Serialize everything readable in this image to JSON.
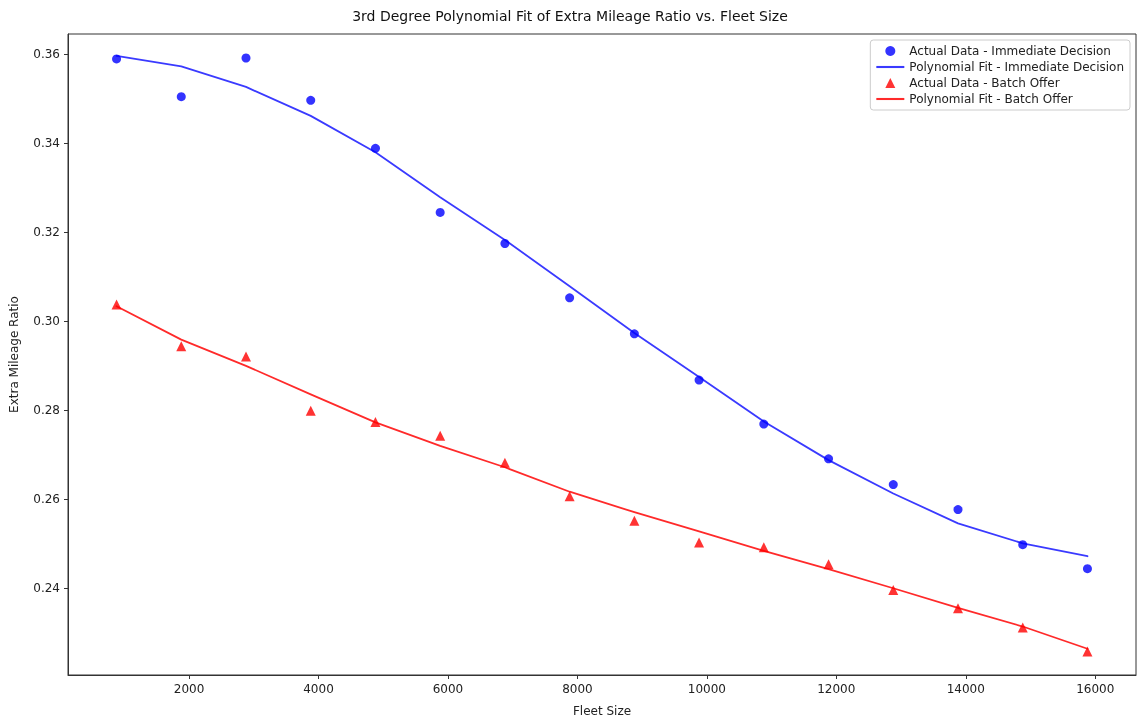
{
  "chart_data": {
    "type": "scatter",
    "title": "3rd Degree Polynomial Fit of Extra Mileage Ratio vs. Fleet Size",
    "xlabel": "Fleet Size",
    "ylabel": "Extra Mileage Ratio",
    "x": [
      880,
      1880,
      2880,
      3880,
      4880,
      5880,
      6880,
      7880,
      8880,
      9880,
      10880,
      11880,
      12880,
      13880,
      14880,
      15880
    ],
    "series": [
      {
        "name": "Actual Data - Immediate Decision",
        "marker": "circle",
        "color": "#0000ff",
        "values": [
          0.3589,
          0.3504,
          0.3591,
          0.3496,
          0.3388,
          0.3244,
          0.3174,
          0.3052,
          0.2971,
          0.2867,
          0.2768,
          0.269,
          0.2632,
          0.2576,
          0.2497,
          0.2443
        ]
      },
      {
        "name": "Polynomial Fit - Immediate Decision",
        "type": "line",
        "marker": "none",
        "color": "#3a3aff",
        "values": [
          0.3596,
          0.3572,
          0.3526,
          0.3461,
          0.3379,
          0.3278,
          0.3182,
          0.3078,
          0.2973,
          0.2874,
          0.2774,
          0.2687,
          0.2612,
          0.2545,
          0.25,
          0.2471
        ]
      },
      {
        "name": "Actual Data - Batch Offer",
        "marker": "triangle",
        "color": "#ff0000",
        "values": [
          0.3037,
          0.2943,
          0.292,
          0.2798,
          0.2773,
          0.2742,
          0.2681,
          0.2606,
          0.2551,
          0.2502,
          0.2491,
          0.2453,
          0.2395,
          0.2354,
          0.2311,
          0.2257
        ]
      },
      {
        "name": "Polynomial Fit - Batch Offer",
        "type": "line",
        "marker": "none",
        "color": "#ff2a2a",
        "values": [
          0.3033,
          0.2958,
          0.2899,
          0.2835,
          0.2772,
          0.2719,
          0.2671,
          0.2616,
          0.257,
          0.2527,
          0.2483,
          0.2442,
          0.2399,
          0.2355,
          0.2313,
          0.2263
        ]
      }
    ],
    "xlim": [
      130,
      16630
    ],
    "xticks": [
      2000,
      4000,
      6000,
      8000,
      10000,
      12000,
      14000,
      16000
    ],
    "ylim": [
      0.2204,
      0.3645
    ],
    "yticks": [
      0.24,
      0.26,
      0.28,
      {
        "value": 0.3,
        "label": "0.30"
      },
      0.32,
      0.34,
      0.36
    ],
    "legend": "top right",
    "grid": false
  }
}
